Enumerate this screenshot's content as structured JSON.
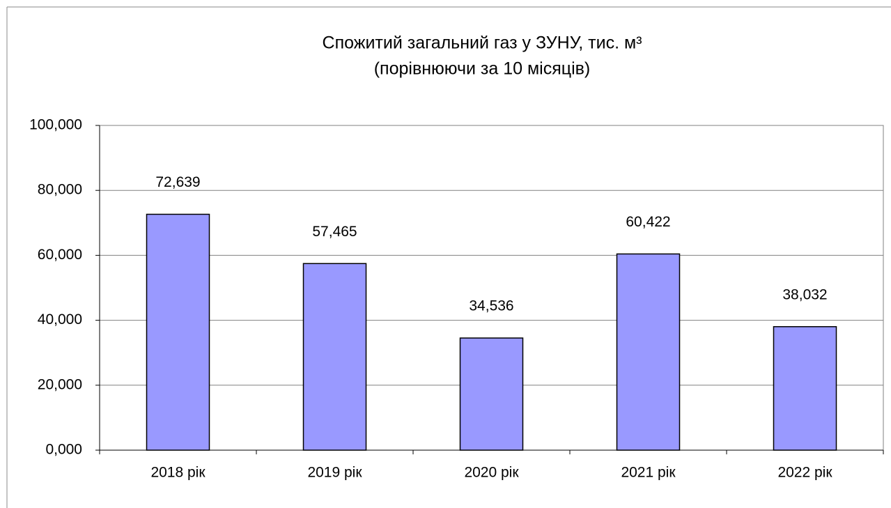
{
  "chart_data": {
    "type": "bar",
    "title": "Спожитий загальний газ у ЗУНУ, тис. м³",
    "subtitle": "(порівнюючи за 10 місяців)",
    "categories": [
      "2018 рік",
      "2019 рік",
      "2020 рік",
      "2021 рік",
      "2022 рік"
    ],
    "values": [
      72.639,
      57.465,
      34.536,
      60.422,
      38.032
    ],
    "value_labels": [
      "72,639",
      "57,465",
      "34,536",
      "60,422",
      "38,032"
    ],
    "color": "#9999ff",
    "ylim": [
      0,
      100
    ],
    "yticks": [
      {
        "value": 0,
        "label": "0,000"
      },
      {
        "value": 20,
        "label": "20,000"
      },
      {
        "value": 40,
        "label": "40,000"
      },
      {
        "value": 60,
        "label": "60,000"
      },
      {
        "value": 80,
        "label": "80,000"
      },
      {
        "value": 100,
        "label": "100,000"
      }
    ],
    "grid": true
  }
}
